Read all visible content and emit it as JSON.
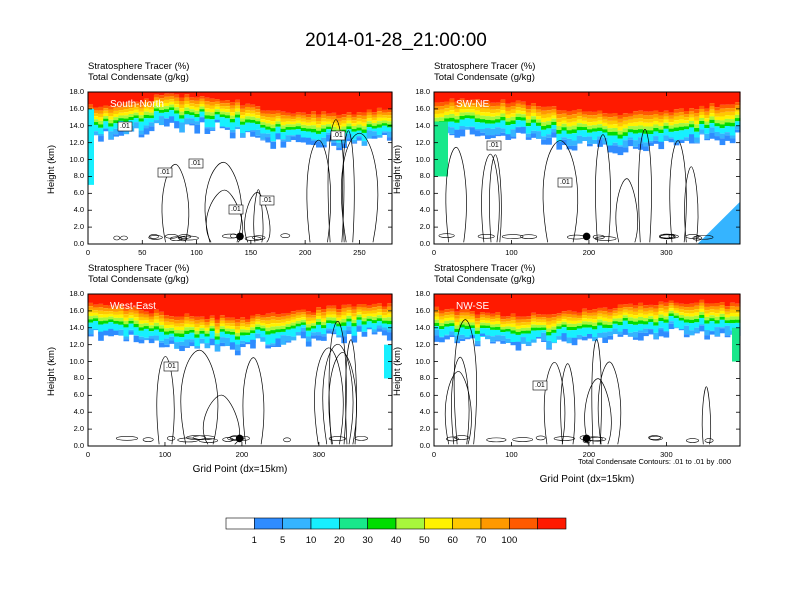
{
  "figure_title": "2014-01-28_21:00:00",
  "contour_note": "Total Condensate Contours: .01 to .01 by .000",
  "chart_data": [
    {
      "type": "heatmap",
      "panel": "South-North",
      "title_line1": "Stratosphere Tracer   (%)",
      "title_line2": "Total Condensate   (g/kg)",
      "ylabel": "Height (km)",
      "xlabel": "",
      "xlim": [
        0,
        280
      ],
      "ylim": [
        0,
        18
      ],
      "xticks": [
        0,
        50,
        100,
        150,
        200,
        250
      ],
      "yticks": [
        "0.0",
        "2.0",
        "4.0",
        "6.0",
        "8.0",
        "10.0",
        "12.0",
        "14.0",
        "16.0",
        "18.0"
      ],
      "marker_x": 140,
      "contour_labels": [
        ".01",
        ".01",
        ".01",
        ".01",
        ".01",
        ".01"
      ]
    },
    {
      "type": "heatmap",
      "panel": "SW-NE",
      "title_line1": "Stratosphere Tracer   (%)",
      "title_line2": "Total Condensate   (g/kg)",
      "ylabel": "Height (km)",
      "xlabel": "",
      "xlim": [
        0,
        395
      ],
      "ylim": [
        0,
        18
      ],
      "xticks": [
        0,
        100,
        200,
        300
      ],
      "yticks": [
        "0.0",
        "2.0",
        "4.0",
        "6.0",
        "8.0",
        "10.0",
        "12.0",
        "14.0",
        "16.0",
        "18.0"
      ],
      "marker_x": 197,
      "contour_labels": [
        ".01",
        ".01"
      ]
    },
    {
      "type": "heatmap",
      "panel": "West-East",
      "title_line1": "Stratosphere Tracer   (%)",
      "title_line2": "Total Condensate   (g/kg)",
      "ylabel": "Height (km)",
      "xlabel": "Grid Point (dx=15km)",
      "xlim": [
        0,
        395
      ],
      "ylim": [
        0,
        18
      ],
      "xticks": [
        0,
        100,
        200,
        300
      ],
      "yticks": [
        "0.0",
        "2.0",
        "4.0",
        "6.0",
        "8.0",
        "10.0",
        "12.0",
        "14.0",
        "16.0",
        "18.0"
      ],
      "marker_x": 197,
      "contour_labels": [
        ".01"
      ]
    },
    {
      "type": "heatmap",
      "panel": "NW-SE",
      "title_line1": "Stratosphere Tracer   (%)",
      "title_line2": "Total Condensate   (g/kg)",
      "ylabel": "Height (km)",
      "xlabel": "Grid Point (dx=15km)",
      "xlim": [
        0,
        395
      ],
      "ylim": [
        0,
        18
      ],
      "xticks": [
        0,
        100,
        200,
        300
      ],
      "yticks": [
        "0.0",
        "2.0",
        "4.0",
        "6.0",
        "8.0",
        "10.0",
        "12.0",
        "14.0",
        "16.0",
        "18.0"
      ],
      "marker_x": 197,
      "contour_labels": [
        ".01"
      ]
    }
  ],
  "colorbar": {
    "labels": [
      "1",
      "5",
      "10",
      "20",
      "30",
      "40",
      "50",
      "60",
      "70",
      "100"
    ],
    "colors": [
      "#ffffff",
      "#2f8cff",
      "#35b4ff",
      "#17f0ff",
      "#18e88b",
      "#00dd00",
      "#a8f73c",
      "#fff200",
      "#ffc800",
      "#ff9900",
      "#ff5a00",
      "#ff1a00"
    ]
  }
}
